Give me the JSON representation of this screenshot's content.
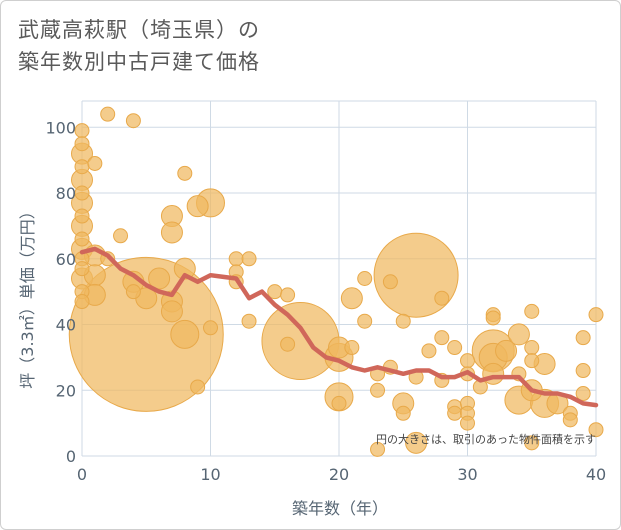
{
  "title_line1": "武蔵高萩駅（埼玉県）の",
  "title_line2": "築年数別中古戸建て価格",
  "chart_data": {
    "type": "scatter",
    "title": "武蔵高萩駅（埼玉県）の築年数別中古戸建て価格",
    "xlabel": "築年数（年）",
    "ylabel": "坪（3.3㎡）単価（万円）",
    "xlim": [
      0,
      40
    ],
    "ylim": [
      0,
      108
    ],
    "x_ticks": [
      0,
      10,
      20,
      30,
      40
    ],
    "y_ticks": [
      0,
      20,
      40,
      60,
      80,
      100
    ],
    "grid": true,
    "note": "円の大きさは、取引のあった物件面積を示す",
    "colors": {
      "bubble": "#f0b860",
      "bubble_edge": "#e8a94a",
      "line": "#d0675a",
      "grid": "#cfdae5",
      "text": "#566573"
    },
    "points": [
      {
        "x": 0,
        "y": 99,
        "s": 1
      },
      {
        "x": 0,
        "y": 95,
        "s": 1
      },
      {
        "x": 0,
        "y": 92,
        "s": 1.5
      },
      {
        "x": 0,
        "y": 88,
        "s": 1
      },
      {
        "x": 0,
        "y": 84,
        "s": 1.5
      },
      {
        "x": 0,
        "y": 80,
        "s": 1
      },
      {
        "x": 0,
        "y": 77,
        "s": 1.5
      },
      {
        "x": 0,
        "y": 73,
        "s": 1
      },
      {
        "x": 0,
        "y": 70,
        "s": 1.5
      },
      {
        "x": 0,
        "y": 66,
        "s": 1
      },
      {
        "x": 0,
        "y": 63,
        "s": 1.5
      },
      {
        "x": 0,
        "y": 60,
        "s": 1
      },
      {
        "x": 0,
        "y": 57,
        "s": 1
      },
      {
        "x": 0,
        "y": 54,
        "s": 1.5
      },
      {
        "x": 0,
        "y": 50,
        "s": 1
      },
      {
        "x": 0,
        "y": 47,
        "s": 1
      },
      {
        "x": 1,
        "y": 89,
        "s": 1
      },
      {
        "x": 1,
        "y": 61,
        "s": 1.5
      },
      {
        "x": 1,
        "y": 55,
        "s": 1.5
      },
      {
        "x": 1,
        "y": 49,
        "s": 1.5
      },
      {
        "x": 2,
        "y": 104,
        "s": 1
      },
      {
        "x": 2,
        "y": 60,
        "s": 1
      },
      {
        "x": 3,
        "y": 67,
        "s": 1
      },
      {
        "x": 4,
        "y": 102,
        "s": 1
      },
      {
        "x": 4,
        "y": 53,
        "s": 1.5
      },
      {
        "x": 4,
        "y": 50,
        "s": 1
      },
      {
        "x": 5,
        "y": 37,
        "s": 11
      },
      {
        "x": 5,
        "y": 48,
        "s": 1.5
      },
      {
        "x": 6,
        "y": 54,
        "s": 1.5
      },
      {
        "x": 7,
        "y": 73,
        "s": 1.5
      },
      {
        "x": 7,
        "y": 68,
        "s": 1.5
      },
      {
        "x": 7,
        "y": 47,
        "s": 1.5
      },
      {
        "x": 7,
        "y": 44,
        "s": 1.5
      },
      {
        "x": 8,
        "y": 86,
        "s": 1
      },
      {
        "x": 8,
        "y": 57,
        "s": 1.5
      },
      {
        "x": 8,
        "y": 37,
        "s": 2
      },
      {
        "x": 9,
        "y": 76,
        "s": 1.5
      },
      {
        "x": 9,
        "y": 21,
        "s": 1
      },
      {
        "x": 10,
        "y": 77,
        "s": 2
      },
      {
        "x": 10,
        "y": 39,
        "s": 1
      },
      {
        "x": 12,
        "y": 60,
        "s": 1
      },
      {
        "x": 12,
        "y": 56,
        "s": 1
      },
      {
        "x": 12,
        "y": 53,
        "s": 1
      },
      {
        "x": 13,
        "y": 60,
        "s": 1
      },
      {
        "x": 13,
        "y": 41,
        "s": 1
      },
      {
        "x": 15,
        "y": 50,
        "s": 1
      },
      {
        "x": 16,
        "y": 49,
        "s": 1
      },
      {
        "x": 17,
        "y": 35,
        "s": 5.5
      },
      {
        "x": 16,
        "y": 34,
        "s": 1
      },
      {
        "x": 20,
        "y": 33,
        "s": 1.5
      },
      {
        "x": 20,
        "y": 30,
        "s": 2
      },
      {
        "x": 20,
        "y": 18,
        "s": 2
      },
      {
        "x": 20,
        "y": 16,
        "s": 1
      },
      {
        "x": 21,
        "y": 48,
        "s": 1.5
      },
      {
        "x": 21,
        "y": 33,
        "s": 1
      },
      {
        "x": 22,
        "y": 54,
        "s": 1
      },
      {
        "x": 22,
        "y": 41,
        "s": 1
      },
      {
        "x": 23,
        "y": 25,
        "s": 1
      },
      {
        "x": 23,
        "y": 20,
        "s": 1
      },
      {
        "x": 23,
        "y": 2,
        "s": 1
      },
      {
        "x": 24,
        "y": 53,
        "s": 1
      },
      {
        "x": 24,
        "y": 27,
        "s": 1
      },
      {
        "x": 25,
        "y": 41,
        "s": 1
      },
      {
        "x": 25,
        "y": 16,
        "s": 1.5
      },
      {
        "x": 25,
        "y": 13,
        "s": 1
      },
      {
        "x": 26,
        "y": 55,
        "s": 6
      },
      {
        "x": 26,
        "y": 24,
        "s": 1
      },
      {
        "x": 26,
        "y": 4,
        "s": 1.5
      },
      {
        "x": 27,
        "y": 32,
        "s": 1
      },
      {
        "x": 28,
        "y": 48,
        "s": 1
      },
      {
        "x": 28,
        "y": 36,
        "s": 1
      },
      {
        "x": 28,
        "y": 23,
        "s": 1
      },
      {
        "x": 29,
        "y": 33,
        "s": 1
      },
      {
        "x": 29,
        "y": 15,
        "s": 1
      },
      {
        "x": 29,
        "y": 13,
        "s": 1
      },
      {
        "x": 30,
        "y": 29,
        "s": 1
      },
      {
        "x": 30,
        "y": 25,
        "s": 1
      },
      {
        "x": 30,
        "y": 16,
        "s": 1
      },
      {
        "x": 30,
        "y": 13,
        "s": 1
      },
      {
        "x": 30,
        "y": 10,
        "s": 1
      },
      {
        "x": 31,
        "y": 21,
        "s": 1
      },
      {
        "x": 32,
        "y": 43,
        "s": 1
      },
      {
        "x": 32,
        "y": 42,
        "s": 1
      },
      {
        "x": 32,
        "y": 32,
        "s": 3
      },
      {
        "x": 32,
        "y": 30,
        "s": 2
      },
      {
        "x": 32,
        "y": 25,
        "s": 1.5
      },
      {
        "x": 33,
        "y": 32,
        "s": 1.5
      },
      {
        "x": 34,
        "y": 37,
        "s": 1.5
      },
      {
        "x": 34,
        "y": 25,
        "s": 1
      },
      {
        "x": 34,
        "y": 17,
        "s": 2
      },
      {
        "x": 35,
        "y": 44,
        "s": 1
      },
      {
        "x": 35,
        "y": 33,
        "s": 1
      },
      {
        "x": 35,
        "y": 29,
        "s": 1
      },
      {
        "x": 35,
        "y": 20,
        "s": 1.5
      },
      {
        "x": 35,
        "y": 4,
        "s": 1
      },
      {
        "x": 36,
        "y": 28,
        "s": 1.5
      },
      {
        "x": 36,
        "y": 16,
        "s": 2
      },
      {
        "x": 37,
        "y": 16,
        "s": 1.5
      },
      {
        "x": 38,
        "y": 13,
        "s": 1
      },
      {
        "x": 38,
        "y": 11,
        "s": 1
      },
      {
        "x": 39,
        "y": 36,
        "s": 1
      },
      {
        "x": 39,
        "y": 26,
        "s": 1
      },
      {
        "x": 39,
        "y": 19,
        "s": 1
      },
      {
        "x": 40,
        "y": 43,
        "s": 1
      },
      {
        "x": 40,
        "y": 8,
        "s": 1
      }
    ],
    "trend": {
      "x": [
        0,
        1,
        2,
        3,
        4,
        5,
        6,
        7,
        8,
        9,
        10,
        11,
        12,
        13,
        14,
        15,
        16,
        17,
        18,
        19,
        20,
        21,
        22,
        23,
        24,
        25,
        26,
        27,
        28,
        29,
        30,
        31,
        32,
        33,
        34,
        35,
        36,
        37,
        38,
        39,
        40
      ],
      "y": [
        62,
        63,
        61,
        57,
        55,
        52,
        50,
        49,
        55,
        53,
        55,
        54.5,
        54,
        48,
        50,
        46,
        43,
        39,
        33,
        30,
        29,
        27,
        26,
        27,
        26,
        25,
        26,
        26,
        24,
        24,
        25.5,
        23,
        24,
        24,
        24,
        20,
        19,
        19,
        18,
        16,
        15.5
      ]
    }
  }
}
